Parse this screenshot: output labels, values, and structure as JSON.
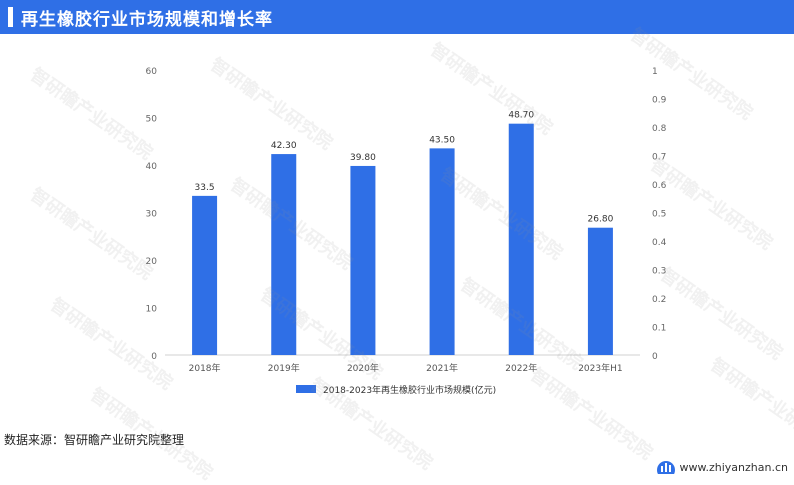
{
  "header": {
    "title": "再生橡胶行业市场规模和增长率"
  },
  "chart_data": {
    "type": "bar",
    "categories": [
      "2018年",
      "2019年",
      "2020年",
      "2021年",
      "2022年",
      "2023年H1"
    ],
    "series": [
      {
        "name": "2018-2023年再生橡胶行业市场规模(亿元)",
        "values": [
          33.5,
          42.3,
          39.8,
          43.5,
          48.7,
          26.8
        ]
      }
    ],
    "data_labels": [
      "33.5",
      "42.30",
      "39.80",
      "43.50",
      "48.70",
      "26.80"
    ],
    "y_left": {
      "ylim": [
        0,
        60
      ],
      "ticks": [
        "0",
        "10",
        "20",
        "30",
        "40",
        "50",
        "60"
      ]
    },
    "y_right": {
      "ylim": [
        0,
        1
      ],
      "ticks": [
        "0",
        "0.1",
        "0.2",
        "0.3",
        "0.4",
        "0.5",
        "0.6",
        "0.7",
        "0.8",
        "0.9",
        "1"
      ]
    },
    "legend_position": "bottom",
    "grid": false,
    "colors": {
      "bar": "#2f6fe6"
    }
  },
  "footer": {
    "source": "数据来源：智研瞻产业研究院整理",
    "logo_text": "www.zhiyanzhan.cn"
  },
  "colors": {
    "header_bg": "#2f6fe6"
  }
}
